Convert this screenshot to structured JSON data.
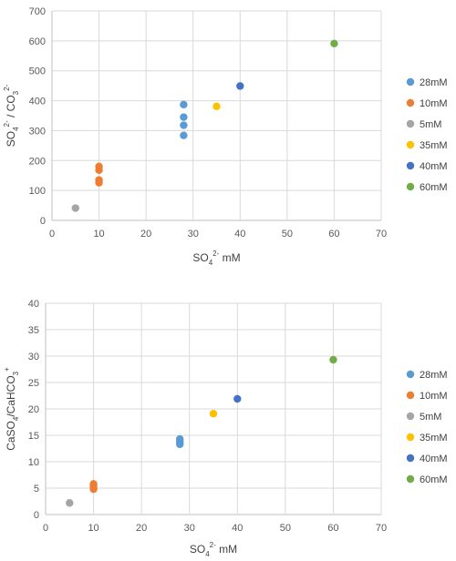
{
  "chart_data": [
    {
      "type": "scatter",
      "title": "",
      "xlabel": {
        "base": "SO",
        "sub": "4",
        "sup": "2-",
        "rest": " mM"
      },
      "ylabel": {
        "parts": [
          {
            "t": "SO"
          },
          {
            "t": "4",
            "s": "sub"
          },
          {
            "t": "2-",
            "s": "sup"
          },
          {
            "t": " / CO"
          },
          {
            "t": "3",
            "s": "sub"
          },
          {
            "t": "2-",
            "s": "sup"
          }
        ]
      },
      "xlim": [
        0,
        70
      ],
      "ylim": [
        0,
        700
      ],
      "xticks": [
        0,
        10,
        20,
        30,
        40,
        50,
        60,
        70
      ],
      "yticks": [
        0,
        100,
        200,
        300,
        400,
        500,
        600,
        700
      ],
      "grid": true,
      "legend_position": "right",
      "series": [
        {
          "name": "28mM",
          "color": "#5b9bd5",
          "points": [
            [
              28,
              387
            ],
            [
              28,
              345
            ],
            [
              28,
              318
            ],
            [
              28,
              284
            ]
          ]
        },
        {
          "name": "10mM",
          "color": "#ed7d31",
          "points": [
            [
              10,
              180
            ],
            [
              10,
              168
            ],
            [
              10,
              135
            ],
            [
              10,
              126
            ]
          ]
        },
        {
          "name": "5mM",
          "color": "#a5a5a5",
          "points": [
            [
              5,
              41
            ]
          ]
        },
        {
          "name": "35mM",
          "color": "#ffc000",
          "points": [
            [
              35,
              381
            ]
          ]
        },
        {
          "name": "40mM",
          "color": "#4472c4",
          "points": [
            [
              40,
              449
            ]
          ]
        },
        {
          "name": "60mM",
          "color": "#70ad47",
          "points": [
            [
              60,
              591
            ]
          ]
        }
      ]
    },
    {
      "type": "scatter",
      "title": "",
      "xlabel": {
        "base": "SO",
        "sub": "4",
        "sup": "2-",
        "rest": " mM"
      },
      "ylabel": {
        "parts": [
          {
            "t": "CaSO"
          },
          {
            "t": "4",
            "s": "sub"
          },
          {
            "t": "/CaHCO"
          },
          {
            "t": "3",
            "s": "sub"
          },
          {
            "t": "+",
            "s": "sup"
          }
        ]
      },
      "xlim": [
        0,
        70
      ],
      "ylim": [
        0,
        40
      ],
      "xticks": [
        0,
        10,
        20,
        30,
        40,
        50,
        60,
        70
      ],
      "yticks": [
        0,
        5,
        10,
        15,
        20,
        25,
        30,
        35,
        40
      ],
      "grid": true,
      "legend_position": "right",
      "series": [
        {
          "name": "28mM",
          "color": "#5b9bd5",
          "points": [
            [
              28,
              14.3
            ],
            [
              28,
              13.9
            ],
            [
              28,
              13.6
            ],
            [
              28,
              13.3
            ]
          ]
        },
        {
          "name": "10mM",
          "color": "#ed7d31",
          "points": [
            [
              10,
              5.8
            ],
            [
              10,
              5.4
            ],
            [
              10,
              5.0
            ],
            [
              10,
              4.8
            ]
          ]
        },
        {
          "name": "5mM",
          "color": "#a5a5a5",
          "points": [
            [
              5,
              2.2
            ]
          ]
        },
        {
          "name": "35mM",
          "color": "#ffc000",
          "points": [
            [
              35,
              19.1
            ]
          ]
        },
        {
          "name": "40mM",
          "color": "#4472c4",
          "points": [
            [
              40,
              21.9
            ]
          ]
        },
        {
          "name": "60mM",
          "color": "#70ad47",
          "points": [
            [
              60,
              29.3
            ]
          ]
        }
      ]
    }
  ]
}
